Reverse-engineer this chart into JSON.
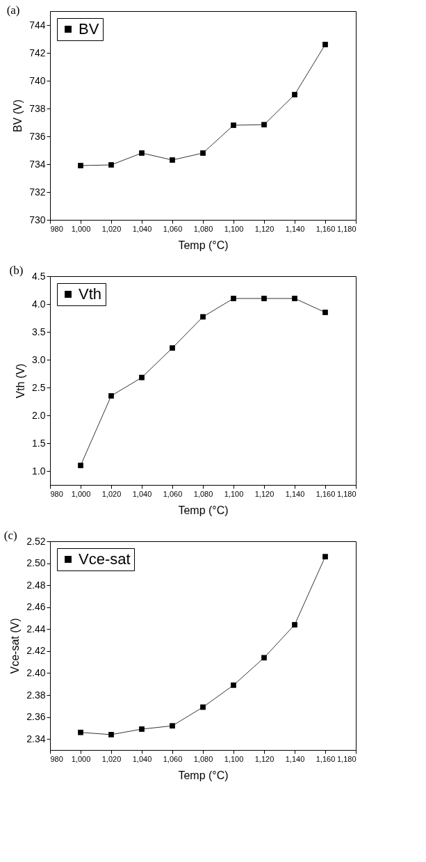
{
  "chart_data": [
    {
      "type": "line",
      "title": "(a)",
      "xlabel": "Temp (°C)",
      "ylabel": "BV (V)",
      "x": [
        1000,
        1020,
        1040,
        1060,
        1080,
        1100,
        1120,
        1140,
        1160
      ],
      "series": [
        {
          "name": "BV",
          "color": "#000000",
          "values": [
            733.9,
            733.95,
            734.8,
            734.3,
            734.8,
            736.8,
            736.84,
            739.0,
            742.6
          ]
        }
      ],
      "xlim": [
        980,
        1180
      ],
      "xticks": [
        {
          "value": 980,
          "label": "980"
        },
        {
          "value": 1000,
          "label": "1,000"
        },
        {
          "value": 1020,
          "label": "1,020"
        },
        {
          "value": 1040,
          "label": "1,040"
        },
        {
          "value": 1060,
          "label": "1,060"
        },
        {
          "value": 1080,
          "label": "1,080"
        },
        {
          "value": 1100,
          "label": "1,100"
        },
        {
          "value": 1120,
          "label": "1,120"
        },
        {
          "value": 1140,
          "label": "1,140"
        },
        {
          "value": 1160,
          "label": "1,160"
        },
        {
          "value": 1180,
          "label": "1,180"
        }
      ],
      "ylim": [
        730,
        745
      ],
      "yticks": [
        730,
        732,
        734,
        736,
        738,
        740,
        742,
        744
      ],
      "legend": "top left",
      "marker": "square",
      "line_style": "solid",
      "grid": false
    },
    {
      "type": "line",
      "title": "(b)",
      "xlabel": "Temp (°C)",
      "ylabel": "Vth (V)",
      "x": [
        1000,
        1020,
        1040,
        1060,
        1080,
        1100,
        1120,
        1140,
        1160
      ],
      "series": [
        {
          "name": "Vth",
          "color": "#000000",
          "values": [
            1.1,
            2.35,
            2.68,
            3.21,
            3.77,
            4.1,
            4.1,
            4.1,
            3.85
          ]
        }
      ],
      "xlim": [
        980,
        1180
      ],
      "xticks": [
        {
          "value": 980,
          "label": "980"
        },
        {
          "value": 1000,
          "label": "1,000"
        },
        {
          "value": 1020,
          "label": "1,020"
        },
        {
          "value": 1040,
          "label": "1,040"
        },
        {
          "value": 1060,
          "label": "1,060"
        },
        {
          "value": 1080,
          "label": "1,080"
        },
        {
          "value": 1100,
          "label": "1,100"
        },
        {
          "value": 1120,
          "label": "1,120"
        },
        {
          "value": 1140,
          "label": "1,140"
        },
        {
          "value": 1160,
          "label": "1,160"
        },
        {
          "value": 1180,
          "label": "1,180"
        }
      ],
      "ylim": [
        0.75,
        4.5
      ],
      "yticks": [
        {
          "value": 1,
          "label": "1.0"
        },
        1.5,
        {
          "value": 2,
          "label": "2.0"
        },
        2.5,
        {
          "value": 3,
          "label": "3.0"
        },
        3.5,
        {
          "value": 4,
          "label": "4.0"
        },
        4.5
      ],
      "legend": "top left",
      "marker": "square",
      "line_style": "solid",
      "grid": false
    },
    {
      "type": "line",
      "title": "(c)",
      "xlabel": "Temp (°C)",
      "ylabel": "Vce-sat (V)",
      "x": [
        1000,
        1020,
        1040,
        1060,
        1080,
        1100,
        1120,
        1140,
        1160
      ],
      "series": [
        {
          "name": "Vce-sat",
          "color": "#000000",
          "values": [
            2.346,
            2.344,
            2.349,
            2.352,
            2.369,
            2.389,
            2.414,
            2.444,
            2.506
          ]
        }
      ],
      "xlim": [
        980,
        1180
      ],
      "xticks": [
        {
          "value": 980,
          "label": "980"
        },
        {
          "value": 1000,
          "label": "1,000"
        },
        {
          "value": 1020,
          "label": "1,020"
        },
        {
          "value": 1040,
          "label": "1,040"
        },
        {
          "value": 1060,
          "label": "1,060"
        },
        {
          "value": 1080,
          "label": "1,080"
        },
        {
          "value": 1100,
          "label": "1,100"
        },
        {
          "value": 1120,
          "label": "1,120"
        },
        {
          "value": 1140,
          "label": "1,140"
        },
        {
          "value": 1160,
          "label": "1,160"
        },
        {
          "value": 1180,
          "label": "1,180"
        }
      ],
      "ylim": [
        2.33,
        2.52
      ],
      "yticks": [
        2.34,
        2.36,
        2.38,
        {
          "value": 2.4,
          "label": "2.40"
        },
        2.42,
        2.44,
        2.46,
        2.48,
        {
          "value": 2.5,
          "label": "2.50"
        },
        2.52
      ],
      "legend": "top left",
      "marker": "square",
      "line_style": "solid",
      "grid": false
    }
  ]
}
